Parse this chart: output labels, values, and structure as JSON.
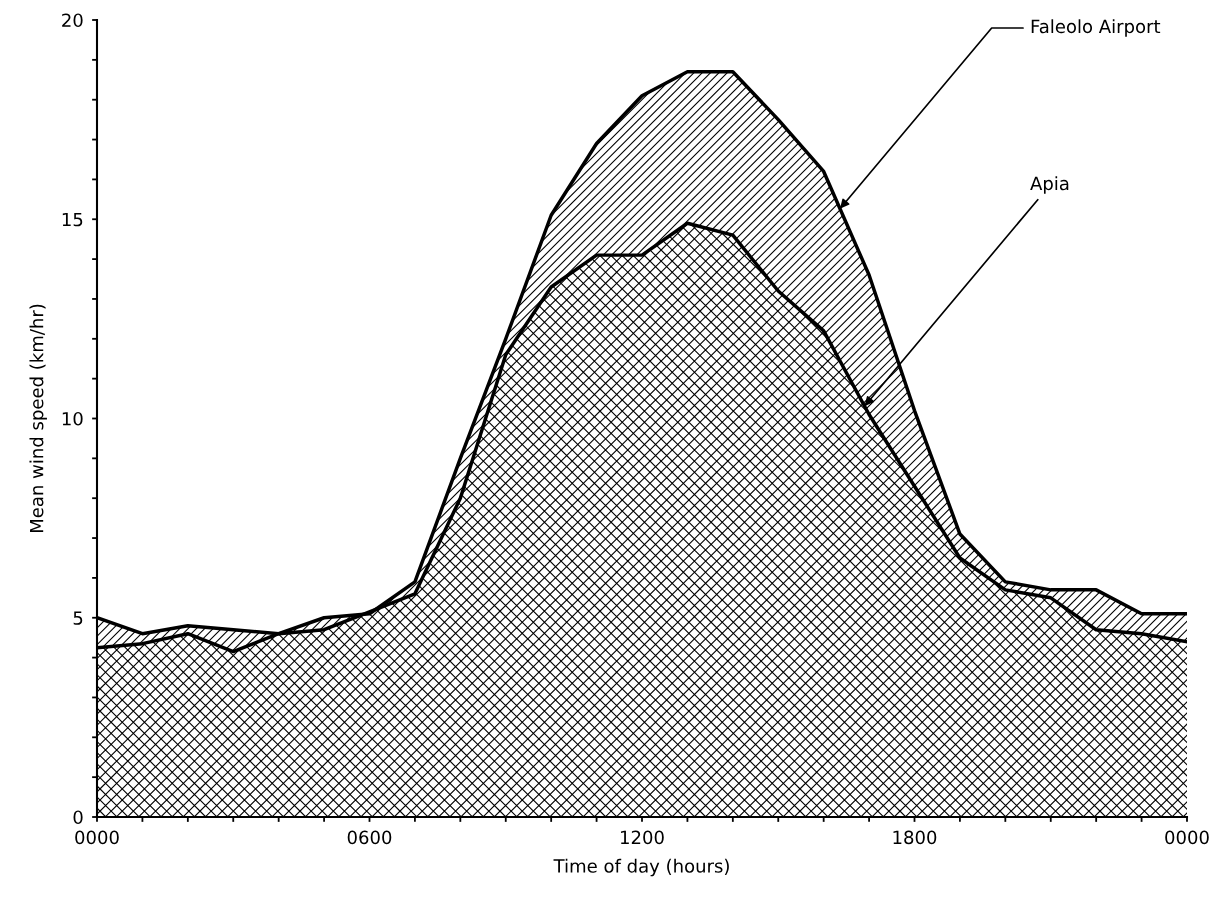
{
  "chart_data": {
    "type": "area",
    "xlabel": "Time of day (hours)",
    "ylabel": "Mean wind speed (km/hr)",
    "categories": [
      "0000",
      null,
      null,
      null,
      null,
      null,
      "0600",
      null,
      null,
      null,
      null,
      null,
      "1200",
      null,
      null,
      null,
      null,
      null,
      "1800",
      null,
      null,
      null,
      null,
      null,
      "0000"
    ],
    "series": [
      {
        "name": "Faleolo Airport",
        "color": "#000000",
        "values": [
          5.0,
          4.6,
          4.8,
          4.7,
          4.6,
          5.0,
          5.1,
          5.9,
          9.0,
          12.0,
          15.1,
          16.9,
          18.1,
          18.7,
          18.7,
          17.5,
          16.2,
          13.6,
          10.2,
          7.1,
          5.9,
          5.7,
          5.7,
          5.1,
          5.1
        ]
      },
      {
        "name": "Apia",
        "color": "#000000",
        "values": [
          4.25,
          4.35,
          4.6,
          4.15,
          4.6,
          4.7,
          5.15,
          5.6,
          8.0,
          11.6,
          13.3,
          14.1,
          14.1,
          14.9,
          14.6,
          13.2,
          12.2,
          10.1,
          8.3,
          6.5,
          5.7,
          5.5,
          4.7,
          4.6,
          4.4
        ]
      }
    ],
    "ylim": [
      0,
      20
    ],
    "yticks": [
      0,
      {
        "value": 1,
        "label": null
      },
      {
        "value": 2,
        "label": null
      },
      {
        "value": 3,
        "label": null
      },
      {
        "value": 4,
        "label": null
      },
      5,
      {
        "value": 6,
        "label": null
      },
      {
        "value": 7,
        "label": null
      },
      {
        "value": 8,
        "label": null
      },
      {
        "value": 9,
        "label": null
      },
      10,
      {
        "value": 11,
        "label": null
      },
      {
        "value": 12,
        "label": null
      },
      {
        "value": 13,
        "label": null
      },
      {
        "value": 14,
        "label": null
      },
      15,
      {
        "value": 16,
        "label": null
      },
      {
        "value": 17,
        "label": null
      },
      {
        "value": 18,
        "label": null
      },
      {
        "value": 19,
        "label": null
      },
      20
    ],
    "grid": false,
    "legend": false
  }
}
